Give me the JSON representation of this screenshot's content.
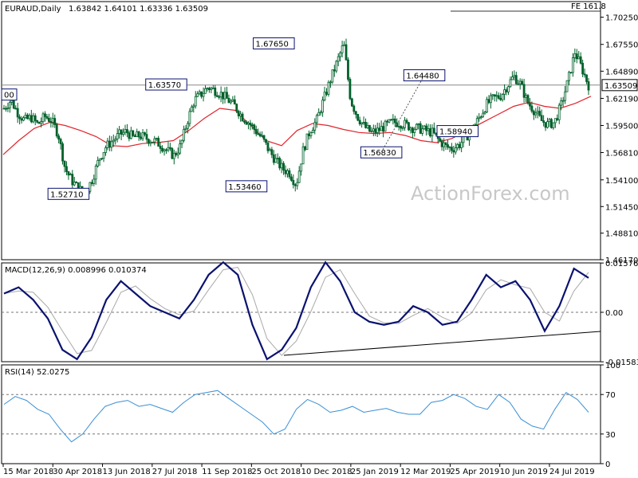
{
  "header": {
    "symbol": "EURAUD,Daily",
    "ohlc": "1.63842 1.64101 1.63336 1.63509",
    "fe_label": "FE 161.8",
    "watermark": "ActionForex.com"
  },
  "price_axis": [
    "1.70250",
    "1.67550",
    "1.64890",
    "1.62190",
    "1.59500",
    "1.56810",
    "1.54100",
    "1.51450",
    "1.48810",
    "1.46170"
  ],
  "current_price": "1.63509",
  "macd": {
    "label": "MACD(12,26,9) 0.008996 0.010374",
    "ticks": [
      "0.015762",
      "0.00",
      "-0.015834"
    ]
  },
  "rsi": {
    "label": "RSI(14) 52.0275",
    "ticks": [
      "100",
      "70",
      "30",
      "0"
    ]
  },
  "dates": [
    "15 Mar 2018",
    "30 Apr 2018",
    "13 Jun 2018",
    "27 Jul 2018",
    "11 Sep 2018",
    "25 Oct 2018",
    "10 Dec 2018",
    "25 Jan 2019",
    "12 Mar 2019",
    "25 Apr 2019",
    "10 Jun 2019",
    "24 Jul 2019"
  ],
  "annotations": [
    {
      "text": "1.52710",
      "date_index": 33,
      "price": 1.5271
    },
    {
      "text": "1.63570",
      "date_index": 83,
      "price": 1.6357
    },
    {
      "text": "1.53460",
      "date_index": 124,
      "price": 1.5346
    },
    {
      "text": "1.67650",
      "date_index": 138,
      "price": 1.6765
    },
    {
      "text": "1.56830",
      "date_index": 193,
      "price": 1.5683
    },
    {
      "text": "1.64480",
      "date_index": 215,
      "price": 1.6448
    },
    {
      "text": "1.58940",
      "date_index": 232,
      "price": 1.5894
    },
    {
      "text": "00",
      "date_index": 0,
      "price": 1.6257
    }
  ],
  "colors": {
    "candles": "#00602a",
    "sma": "#e0242c",
    "macd": "#0a1270",
    "signal": "#a9a9a9",
    "rsi": "#3a8fd6",
    "grid": "#000000"
  },
  "chart_data": {
    "type": "line",
    "instrument": "EURAUD",
    "timeframe": "Daily",
    "ylim": [
      1.4617,
      1.718
    ],
    "price": {
      "x": [
        "15 Mar 2018",
        "30 Apr 2018",
        "13 Jun 2018",
        "27 Jul 2018",
        "11 Sep 2018",
        "25 Oct 2018",
        "10 Dec 2018",
        "25 Jan 2019",
        "12 Mar 2019",
        "25 Apr 2019",
        "10 Jun 2019",
        "24 Jul 2019"
      ],
      "y": [
        1.603,
        1.54,
        1.583,
        1.572,
        1.62,
        1.56,
        1.64,
        1.598,
        1.58,
        1.622,
        1.615,
        1.67
      ],
      "path": [
        1.612,
        1.62,
        1.608,
        1.6,
        1.603,
        1.596,
        1.604,
        1.6,
        1.586,
        1.552,
        1.54,
        1.532,
        1.528,
        1.542,
        1.562,
        1.574,
        1.58,
        1.586,
        1.589,
        1.583,
        1.585,
        1.582,
        1.58,
        1.576,
        1.57,
        1.565,
        1.575,
        1.6,
        1.62,
        1.626,
        1.633,
        1.63,
        1.626,
        1.62,
        1.614,
        1.604,
        1.598,
        1.59,
        1.582,
        1.57,
        1.56,
        1.552,
        1.548,
        1.536,
        1.57,
        1.59,
        1.6,
        1.62,
        1.64,
        1.658,
        1.676,
        1.62,
        1.604,
        1.594,
        1.588,
        1.59,
        1.594,
        1.598,
        1.598,
        1.596,
        1.593,
        1.592,
        1.59,
        1.588,
        1.58,
        1.574,
        1.572,
        1.576,
        1.584,
        1.592,
        1.604,
        1.616,
        1.622,
        1.624,
        1.634,
        1.644,
        1.636,
        1.618,
        1.61,
        1.6,
        1.596,
        1.598,
        1.616,
        1.64,
        1.668,
        1.652,
        1.635
      ]
    },
    "sma": [
      1.566,
      1.58,
      1.592,
      1.598,
      1.595,
      1.59,
      1.584,
      1.575,
      1.574,
      1.577,
      1.578,
      1.58,
      1.59,
      1.602,
      1.612,
      1.61,
      1.595,
      1.58,
      1.575,
      1.59,
      1.597,
      1.595,
      1.591,
      1.588,
      1.587,
      1.588,
      1.585,
      1.58,
      1.578,
      1.582,
      1.59,
      1.598,
      1.606,
      1.614,
      1.618,
      1.614,
      1.612,
      1.617,
      1.624
    ],
    "macd": {
      "ylim": [
        -0.0158,
        0.0158
      ],
      "values": [
        0.006,
        0.008,
        0.004,
        -0.002,
        -0.012,
        -0.015,
        -0.008,
        0.004,
        0.01,
        0.006,
        0.002,
        0.0,
        -0.002,
        0.004,
        0.012,
        0.016,
        0.012,
        -0.004,
        -0.015,
        -0.012,
        -0.005,
        0.008,
        0.016,
        0.01,
        0.0,
        -0.003,
        -0.004,
        -0.003,
        0.002,
        0.0,
        -0.004,
        -0.003,
        0.004,
        0.012,
        0.008,
        0.01,
        0.004,
        -0.006,
        0.002,
        0.014,
        0.011
      ]
    },
    "rsi": {
      "ylim": [
        0,
        100
      ],
      "levels": [
        70,
        30
      ],
      "values": [
        60,
        68,
        64,
        55,
        50,
        35,
        22,
        30,
        45,
        58,
        62,
        64,
        58,
        60,
        56,
        52,
        62,
        70,
        72,
        74,
        66,
        58,
        50,
        42,
        30,
        35,
        55,
        65,
        60,
        52,
        54,
        58,
        52,
        54,
        56,
        52,
        50,
        50,
        62,
        64,
        70,
        66,
        58,
        55,
        70,
        62,
        45,
        38,
        35,
        55,
        72,
        65,
        52
      ]
    }
  }
}
